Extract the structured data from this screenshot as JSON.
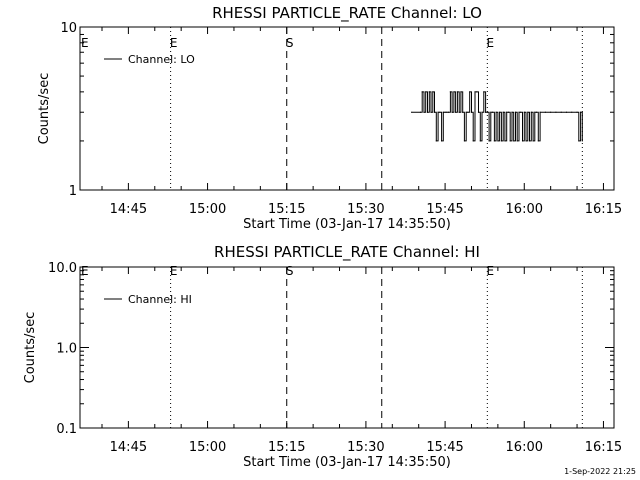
{
  "footer": {
    "timestamp": "1-Sep-2022 21:25"
  },
  "chart_data": [
    {
      "type": "line",
      "title": "RHESSI PARTICLE_RATE Channel: LO",
      "xlabel": "Start Time (03-Jan-17 14:35:50)",
      "ylabel": "Counts/sec",
      "yscale": "log",
      "xlim": [
        "14:35:50",
        "16:17:00"
      ],
      "ylim": [
        1,
        10
      ],
      "xticks": [
        "14:45",
        "15:00",
        "15:15",
        "15:30",
        "15:45",
        "16:00",
        "16:15"
      ],
      "yticks": [
        "1",
        "10"
      ],
      "legend": {
        "position": "top-left",
        "entries": [
          "Channel: LO"
        ]
      },
      "color": "#000000",
      "event_markers": [
        {
          "time": "14:53:00",
          "style": "dotted",
          "label": "E"
        },
        {
          "time": "15:15:00",
          "style": "dashed",
          "label": "S"
        },
        {
          "time": "15:33:00",
          "style": "dashed",
          "label": ""
        },
        {
          "time": "15:53:00",
          "style": "dotted",
          "label": "E"
        },
        {
          "time": "16:11:00",
          "style": "dotted",
          "label": ""
        }
      ],
      "series": [
        {
          "name": "Channel: LO",
          "points": [
            [
              "15:38:40",
              3
            ],
            [
              "15:40:20",
              3
            ],
            [
              "15:40:40",
              4
            ],
            [
              "15:41:00",
              3
            ],
            [
              "15:41:20",
              4
            ],
            [
              "15:41:40",
              3
            ],
            [
              "15:42:00",
              4
            ],
            [
              "15:42:20",
              3
            ],
            [
              "15:42:40",
              4
            ],
            [
              "15:43:00",
              3
            ],
            [
              "15:43:20",
              2
            ],
            [
              "15:43:40",
              3
            ],
            [
              "15:44:00",
              3
            ],
            [
              "15:44:20",
              2
            ],
            [
              "15:44:40",
              3
            ],
            [
              "15:45:00",
              3
            ],
            [
              "15:45:20",
              3
            ],
            [
              "15:45:40",
              3
            ],
            [
              "15:46:00",
              4
            ],
            [
              "15:46:20",
              3
            ],
            [
              "15:46:40",
              4
            ],
            [
              "15:47:00",
              3
            ],
            [
              "15:47:20",
              4
            ],
            [
              "15:47:40",
              3
            ],
            [
              "15:48:00",
              4
            ],
            [
              "15:48:20",
              3
            ],
            [
              "15:48:40",
              2
            ],
            [
              "15:49:00",
              3
            ],
            [
              "15:49:20",
              3
            ],
            [
              "15:49:40",
              4
            ],
            [
              "15:50:00",
              3
            ],
            [
              "15:50:20",
              2
            ],
            [
              "15:50:40",
              4
            ],
            [
              "15:51:00",
              4
            ],
            [
              "15:51:20",
              3
            ],
            [
              "15:51:40",
              2
            ],
            [
              "15:52:00",
              3
            ],
            [
              "15:52:20",
              4
            ],
            [
              "15:52:40",
              3
            ],
            [
              "15:53:00",
              3
            ],
            [
              "15:53:20",
              2
            ],
            [
              "15:53:40",
              3
            ],
            [
              "15:54:00",
              3
            ],
            [
              "15:54:20",
              2
            ],
            [
              "15:54:40",
              3
            ],
            [
              "15:55:00",
              2
            ],
            [
              "15:55:20",
              3
            ],
            [
              "15:55:40",
              2
            ],
            [
              "15:56:00",
              3
            ],
            [
              "15:56:20",
              2
            ],
            [
              "15:56:40",
              3
            ],
            [
              "15:57:00",
              3
            ],
            [
              "15:57:20",
              2
            ],
            [
              "15:57:40",
              3
            ],
            [
              "15:58:00",
              2
            ],
            [
              "15:58:20",
              3
            ],
            [
              "15:58:40",
              2
            ],
            [
              "15:59:00",
              3
            ],
            [
              "15:59:20",
              3
            ],
            [
              "15:59:40",
              2
            ],
            [
              "16:00:00",
              3
            ],
            [
              "16:00:20",
              2
            ],
            [
              "16:00:40",
              3
            ],
            [
              "16:01:00",
              2
            ],
            [
              "16:01:20",
              3
            ],
            [
              "16:01:40",
              2
            ],
            [
              "16:02:00",
              3
            ],
            [
              "16:02:20",
              3
            ],
            [
              "16:02:40",
              2
            ],
            [
              "16:03:00",
              3
            ],
            [
              "16:04:00",
              3
            ],
            [
              "16:05:00",
              3
            ],
            [
              "16:06:00",
              3
            ],
            [
              "16:07:00",
              3
            ],
            [
              "16:08:00",
              3
            ],
            [
              "16:09:00",
              3
            ],
            [
              "16:10:00",
              3
            ],
            [
              "16:10:20",
              2
            ],
            [
              "16:10:40",
              3
            ],
            [
              "16:11:00",
              2
            ]
          ]
        }
      ]
    },
    {
      "type": "line",
      "title": "RHESSI PARTICLE_RATE Channel: HI",
      "xlabel": "Start Time (03-Jan-17 14:35:50)",
      "ylabel": "Counts/sec",
      "yscale": "log",
      "xlim": [
        "14:35:50",
        "16:17:00"
      ],
      "ylim": [
        0.1,
        10
      ],
      "xticks": [
        "14:45",
        "15:00",
        "15:15",
        "15:30",
        "15:45",
        "16:00",
        "16:15"
      ],
      "yticks": [
        "0.1",
        "1.0",
        "10.0"
      ],
      "legend": {
        "position": "top-left",
        "entries": [
          "Channel: HI"
        ]
      },
      "color": "#000000",
      "event_markers": [
        {
          "time": "14:53:00",
          "style": "dotted",
          "label": "E"
        },
        {
          "time": "15:15:00",
          "style": "dashed",
          "label": "S"
        },
        {
          "time": "15:33:00",
          "style": "dashed",
          "label": ""
        },
        {
          "time": "15:53:00",
          "style": "dotted",
          "label": "E"
        },
        {
          "time": "16:11:00",
          "style": "dotted",
          "label": ""
        }
      ],
      "series": [
        {
          "name": "Channel: HI",
          "points": []
        }
      ]
    }
  ]
}
